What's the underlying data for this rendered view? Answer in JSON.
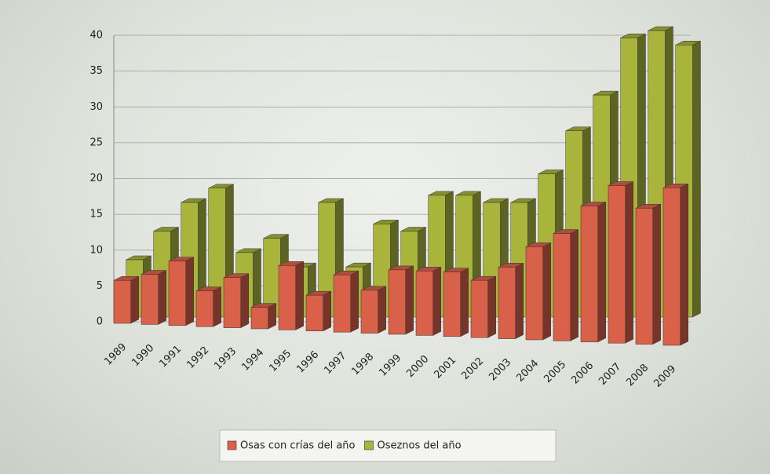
{
  "chart_data": {
    "type": "bar",
    "categories": [
      "1989",
      "1990",
      "1991",
      "1992",
      "1993",
      "1994",
      "1995",
      "1996",
      "1997",
      "1998",
      "1999",
      "2000",
      "2001",
      "2002",
      "2003",
      "2004",
      "2005",
      "2006",
      "2007",
      "2008",
      "2009"
    ],
    "series": [
      {
        "name": "Osas con crías del año",
        "color": "#d9614a",
        "values": [
          6,
          7,
          9,
          5,
          7,
          3,
          9,
          5,
          8,
          6,
          9,
          9,
          9,
          8,
          10,
          13,
          15,
          19,
          22,
          19,
          22
        ]
      },
      {
        "name": "Oseznos del año",
        "color": "#a9b43a",
        "values": [
          8,
          12,
          16,
          18,
          9,
          11,
          7,
          16,
          7,
          13,
          12,
          17,
          17,
          16,
          16,
          20,
          26,
          31,
          39,
          40,
          38
        ]
      }
    ],
    "ylim": [
      0,
      40
    ],
    "yticks": [
      0,
      5,
      10,
      15,
      20,
      25,
      30,
      35,
      40
    ],
    "grid": true,
    "legend": "bottom"
  }
}
